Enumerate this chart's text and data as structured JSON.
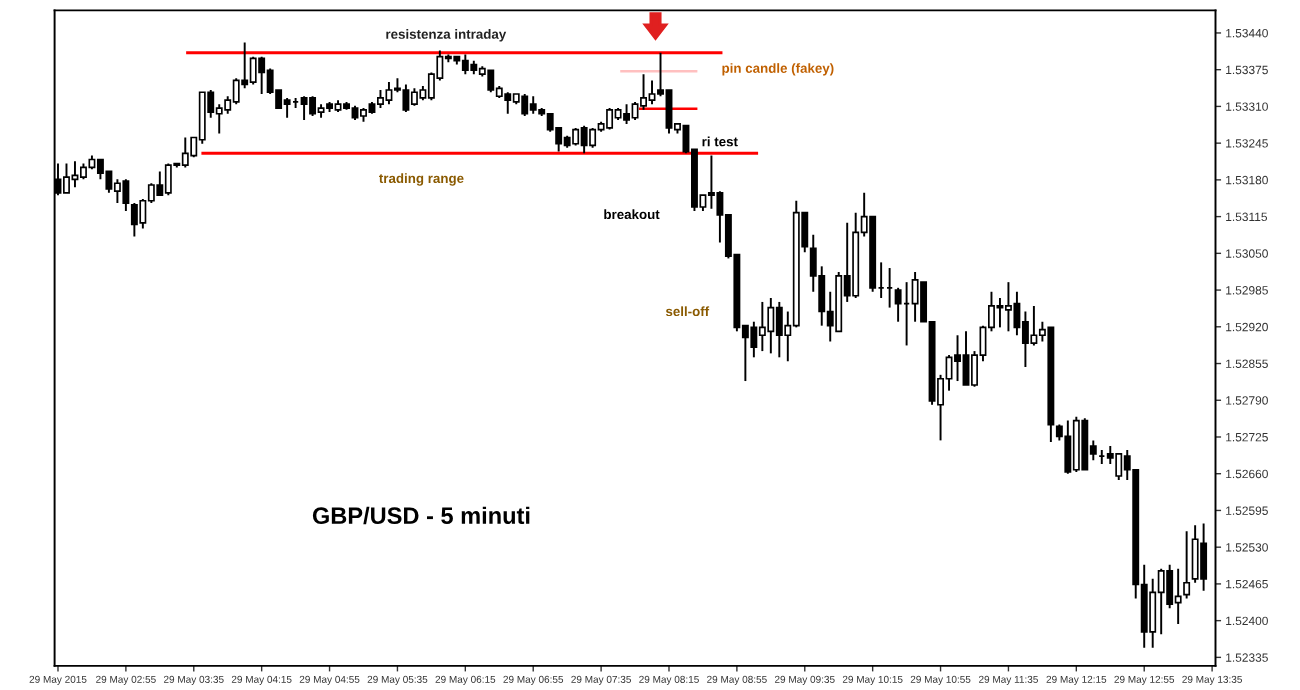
{
  "chart_data": {
    "type": "candlestick",
    "categories": [
      "29 May 2015",
      null,
      null,
      null,
      null,
      null,
      null,
      null,
      "29 May 02:55",
      null,
      null,
      null,
      null,
      null,
      null,
      null,
      "29 May 03:35",
      null,
      null,
      null,
      null,
      null,
      null,
      null,
      "29 May 04:15",
      null,
      null,
      null,
      null,
      null,
      null,
      null,
      "29 May 04:55",
      null,
      null,
      null,
      null,
      null,
      null,
      null,
      "29 May 05:35",
      null,
      null,
      null,
      null,
      null,
      null,
      null,
      "29 May 06:15",
      null,
      null,
      null,
      null,
      null,
      null,
      null,
      "29 May 06:55",
      null,
      null,
      null,
      null,
      null,
      null,
      null,
      "29 May 07:35",
      null,
      null,
      null,
      null,
      null,
      null,
      null,
      "29 May 08:15",
      null,
      null,
      null,
      null,
      null,
      null,
      null,
      "29 May 08:55",
      null,
      null,
      null,
      null,
      null,
      null,
      null,
      "29 May 09:35",
      null,
      null,
      null,
      null,
      null,
      null,
      null,
      "29 May 10:15",
      null,
      null,
      null,
      null,
      null,
      null,
      null,
      "29 May 10:55",
      null,
      null,
      null,
      null,
      null,
      null,
      null,
      "29 May 11:35",
      null,
      null,
      null,
      null,
      null,
      null,
      null,
      "29 May 12:15",
      null,
      null,
      null,
      null,
      null,
      null,
      null,
      "29 May 12:55",
      null,
      null,
      null,
      null,
      null,
      null,
      null,
      "29 May 13:35"
    ],
    "series": [
      {
        "color": "#000000",
        "ohlc": [
          [
            1.53181,
            1.53209,
            1.53153,
            1.53157
          ],
          [
            1.53157,
            1.53209,
            1.53157,
            1.53185
          ],
          [
            1.53181,
            1.53213,
            1.53167,
            1.53188
          ],
          [
            1.53185,
            1.53209,
            1.53181,
            1.53202
          ],
          [
            1.53202,
            1.53223,
            1.53199,
            1.53216
          ],
          [
            1.53216,
            1.53216,
            1.53181,
            1.53192
          ],
          [
            1.53195,
            1.53195,
            1.53157,
            1.53164
          ],
          [
            1.5316,
            1.53181,
            1.53139,
            1.53174
          ],
          [
            1.53178,
            1.53181,
            1.53125,
            1.53139
          ],
          [
            1.53136,
            1.53139,
            1.5308,
            1.53101
          ],
          [
            1.53104,
            1.53146,
            1.53094,
            1.53143
          ],
          [
            1.53143,
            1.53174,
            1.53139,
            1.53171
          ],
          [
            1.53171,
            1.53195,
            1.53153,
            1.53153
          ],
          [
            1.53157,
            1.53209,
            1.53153,
            1.53206
          ],
          [
            1.53209,
            1.53209,
            1.53202,
            1.53206
          ],
          [
            1.53206,
            1.53255,
            1.53202,
            1.53227
          ],
          [
            1.53223,
            1.53255,
            1.5322,
            1.53255
          ],
          [
            1.53251,
            1.53335,
            1.53244,
            1.53335
          ],
          [
            1.53335,
            1.53339,
            1.5329,
            1.533
          ],
          [
            1.53297,
            1.53314,
            1.53262,
            1.53307
          ],
          [
            1.53304,
            1.53328,
            1.53297,
            1.53321
          ],
          [
            1.53318,
            1.5336,
            1.53314,
            1.53356
          ],
          [
            1.53356,
            1.53423,
            1.53342,
            1.53349
          ],
          [
            1.53353,
            1.53398,
            1.53349,
            1.53395
          ],
          [
            1.53395,
            1.53398,
            1.53332,
            1.5337
          ],
          [
            1.53374,
            1.53377,
            1.53332,
            1.53335
          ],
          [
            1.53339,
            1.53339,
            1.53307,
            1.53307
          ],
          [
            1.53321,
            1.53325,
            1.5329,
            1.53314
          ],
          [
            1.53318,
            1.53325,
            1.53307,
            1.53318
          ],
          [
            1.53325,
            1.53328,
            1.53286,
            1.53314
          ],
          [
            1.53325,
            1.53328,
            1.53293,
            1.53297
          ],
          [
            1.533,
            1.53314,
            1.5329,
            1.53307
          ],
          [
            1.53314,
            1.53318,
            1.533,
            1.53307
          ],
          [
            1.53304,
            1.53321,
            1.533,
            1.53314
          ],
          [
            1.53314,
            1.53318,
            1.53304,
            1.53307
          ],
          [
            1.53307,
            1.53311,
            1.53286,
            1.5329
          ],
          [
            1.53293,
            1.53307,
            1.53283,
            1.53304
          ],
          [
            1.53314,
            1.53318,
            1.53297,
            1.533
          ],
          [
            1.53314,
            1.53339,
            1.53307,
            1.53325
          ],
          [
            1.53321,
            1.53353,
            1.53314,
            1.53339
          ],
          [
            1.53339,
            1.5336,
            1.53335,
            1.53342
          ],
          [
            1.53339,
            1.53349,
            1.533,
            1.53304
          ],
          [
            1.53314,
            1.53342,
            1.53311,
            1.53335
          ],
          [
            1.53325,
            1.53346,
            1.53321,
            1.53339
          ],
          [
            1.53325,
            1.5337,
            1.53321,
            1.53367
          ],
          [
            1.5336,
            1.53409,
            1.53356,
            1.53398
          ],
          [
            1.53398,
            1.53402,
            1.53388,
            1.53395
          ],
          [
            1.53398,
            1.53398,
            1.53384,
            1.53391
          ],
          [
            1.53391,
            1.53402,
            1.53367,
            1.53374
          ],
          [
            1.53384,
            1.53391,
            1.53367,
            1.53374
          ],
          [
            1.53367,
            1.53381,
            1.53363,
            1.53377
          ],
          [
            1.53374,
            1.53374,
            1.53335,
            1.53339
          ],
          [
            1.53328,
            1.53346,
            1.53325,
            1.53342
          ],
          [
            1.53332,
            1.53335,
            1.53297,
            1.53321
          ],
          [
            1.53318,
            1.53332,
            1.53314,
            1.53332
          ],
          [
            1.53328,
            1.53332,
            1.53293,
            1.53297
          ],
          [
            1.53314,
            1.53328,
            1.53297,
            1.53304
          ],
          [
            1.53304,
            1.53307,
            1.53293,
            1.53297
          ],
          [
            1.53297,
            1.53297,
            1.53265,
            1.53269
          ],
          [
            1.53272,
            1.53272,
            1.5323,
            1.53244
          ],
          [
            1.53255,
            1.53258,
            1.53237,
            1.53241
          ],
          [
            1.53244,
            1.53272,
            1.53241,
            1.53269
          ],
          [
            1.53272,
            1.53276,
            1.53227,
            1.53241
          ],
          [
            1.53241,
            1.53272,
            1.53237,
            1.53269
          ],
          [
            1.53269,
            1.53283,
            1.53265,
            1.53279
          ],
          [
            1.53272,
            1.53307,
            1.53269,
            1.53304
          ],
          [
            1.5329,
            1.53307,
            1.53286,
            1.53304
          ],
          [
            1.53297,
            1.53314,
            1.53279,
            1.53286
          ],
          [
            1.5329,
            1.53318,
            1.53286,
            1.53314
          ],
          [
            1.53311,
            1.53367,
            1.53304,
            1.53325
          ],
          [
            1.53321,
            1.53356,
            1.53314,
            1.53332
          ],
          [
            1.53339,
            1.53405,
            1.53328,
            1.53332
          ],
          [
            1.53339,
            1.53339,
            1.53262,
            1.53272
          ],
          [
            1.53269,
            1.53279,
            1.53262,
            1.53279
          ],
          [
            1.53276,
            1.53276,
            1.53227,
            1.5323
          ],
          [
            1.53234,
            1.53234,
            1.53125,
            1.53132
          ],
          [
            1.53132,
            1.53153,
            1.53125,
            1.53153
          ],
          [
            1.53157,
            1.53223,
            1.53129,
            1.53153
          ],
          [
            1.53157,
            1.5316,
            1.53069,
            1.53118
          ],
          [
            1.53118,
            1.53118,
            1.53041,
            1.53045
          ],
          [
            1.53048,
            1.53048,
            1.52912,
            1.52919
          ],
          [
            1.52922,
            1.52922,
            1.52824,
            1.52901
          ],
          [
            1.52919,
            1.52929,
            1.52866,
            1.52884
          ],
          [
            1.52905,
            1.52964,
            1.52877,
            1.52919
          ],
          [
            1.52912,
            1.52971,
            1.52873,
            1.52954
          ],
          [
            1.52954,
            1.52964,
            1.52866,
            1.52905
          ],
          [
            1.52905,
            1.52947,
            1.52859,
            1.52922
          ],
          [
            1.52922,
            1.53143,
            1.52919,
            1.53122
          ],
          [
            1.53122,
            1.53122,
            1.53052,
            1.53062
          ],
          [
            1.53059,
            1.53083,
            1.52982,
            1.5301
          ],
          [
            1.5301,
            1.53027,
            1.52922,
            1.52947
          ],
          [
            1.52947,
            1.52982,
            1.52894,
            1.52922
          ],
          [
            1.52912,
            1.53017,
            1.52912,
            1.5301
          ],
          [
            1.5301,
            1.53104,
            1.52964,
            1.52975
          ],
          [
            1.52975,
            1.53122,
            1.52971,
            1.53087
          ],
          [
            1.53087,
            1.53157,
            1.5308,
            1.53115
          ],
          [
            1.53115,
            1.53115,
            1.52982,
            1.52989
          ],
          [
            1.52989,
            1.53034,
            1.52971,
            1.52989
          ],
          [
            1.52989,
            1.53024,
            1.52954,
            1.52989
          ],
          [
            1.52985,
            1.52989,
            1.52929,
            1.52961
          ],
          [
            1.52961,
            1.52999,
            1.52887,
            1.52961
          ],
          [
            1.52961,
            1.53017,
            1.52929,
            1.53003
          ],
          [
            1.52999,
            1.52999,
            1.52929,
            1.52929
          ],
          [
            1.52929,
            1.52929,
            1.52782,
            1.52789
          ],
          [
            1.52782,
            1.52835,
            1.52719,
            1.52828
          ],
          [
            1.52828,
            1.5287,
            1.52807,
            1.52866
          ],
          [
            1.5287,
            1.52905,
            1.52824,
            1.52859
          ],
          [
            1.5287,
            1.52912,
            1.52817,
            1.52817
          ],
          [
            1.52817,
            1.52877,
            1.52814,
            1.5287
          ],
          [
            1.5287,
            1.52922,
            1.52859,
            1.52919
          ],
          [
            1.52919,
            1.52982,
            1.52912,
            1.52957
          ],
          [
            1.52954,
            1.52971,
            1.52919,
            1.52957
          ],
          [
            1.5295,
            1.52999,
            1.52912,
            1.52957
          ],
          [
            1.52961,
            1.52982,
            1.52905,
            1.52919
          ],
          [
            1.52929,
            1.52947,
            1.52849,
            1.52891
          ],
          [
            1.52891,
            1.52957,
            1.52887,
            1.52905
          ],
          [
            1.52905,
            1.52929,
            1.52894,
            1.52915
          ],
          [
            1.52919,
            1.52919,
            1.52716,
            1.52747
          ],
          [
            1.52744,
            1.52747,
            1.52719,
            1.52726
          ],
          [
            1.52726,
            1.52754,
            1.5266,
            1.52663
          ],
          [
            1.52667,
            1.52761,
            1.52663,
            1.52754
          ],
          [
            1.52754,
            1.52758,
            1.52667,
            1.52667
          ],
          [
            1.52709,
            1.52719,
            1.52684,
            1.52695
          ],
          [
            1.52691,
            1.52702,
            1.52677,
            1.52691
          ],
          [
            1.52695,
            1.52709,
            1.52677,
            1.52688
          ],
          [
            1.52656,
            1.52695,
            1.52649,
            1.52695
          ],
          [
            1.52691,
            1.52702,
            1.52649,
            1.52667
          ],
          [
            1.52667,
            1.52667,
            1.52439,
            1.52464
          ],
          [
            1.52464,
            1.52499,
            1.52352,
            1.5238
          ],
          [
            1.5238,
            1.52474,
            1.52352,
            1.5245
          ],
          [
            1.5245,
            1.52492,
            1.52376,
            1.52488
          ],
          [
            1.52488,
            1.52499,
            1.52422,
            1.52429
          ],
          [
            1.52432,
            1.52492,
            1.52394,
            1.52443
          ],
          [
            1.52446,
            1.52558,
            1.52439,
            1.52467
          ],
          [
            1.52474,
            1.52569,
            1.52467,
            1.52544
          ],
          [
            1.52537,
            1.52572,
            1.52453,
            1.52474
          ],
          null
        ]
      }
    ],
    "ylim": [
      1.5232,
      1.5348
    ],
    "yticks": [
      {
        "value": 1.5344,
        "label": "1.53440"
      },
      {
        "value": 1.53375,
        "label": "1.53375"
      },
      {
        "value": 1.5331,
        "label": "1.53310"
      },
      {
        "value": 1.53245,
        "label": "1.53245"
      },
      {
        "value": 1.5318,
        "label": "1.53180"
      },
      {
        "value": 1.53115,
        "label": "1.53115"
      },
      {
        "value": 1.5305,
        "label": "1.53050"
      },
      {
        "value": 1.52985,
        "label": "1.52985"
      },
      {
        "value": 1.5292,
        "label": "1.52920"
      },
      {
        "value": 1.52855,
        "label": "1.52855"
      },
      {
        "value": 1.5279,
        "label": "1.52790"
      },
      {
        "value": 1.52725,
        "label": "1.52725"
      },
      {
        "value": 1.5266,
        "label": "1.52660"
      },
      {
        "value": 1.52595,
        "label": "1.52595"
      },
      {
        "value": 1.5253,
        "label": "1.52530"
      },
      {
        "value": 1.52465,
        "label": "1.52465"
      },
      {
        "value": 1.524,
        "label": "1.52400"
      },
      {
        "value": 1.52335,
        "label": "1.52335"
      }
    ],
    "ref_lines": [
      {
        "axis": "y",
        "value": 1.53405,
        "label": "resistenza intraday",
        "color": "#ff0000"
      },
      {
        "axis": "y",
        "value": 1.53227,
        "label": "trading range",
        "color": "#ff0000"
      }
    ],
    "annotations": [
      "GBP/USD - 5 minuti",
      "pin candle (fakey)",
      "ri test",
      "breakout",
      "sell-off"
    ],
    "grid": false
  }
}
